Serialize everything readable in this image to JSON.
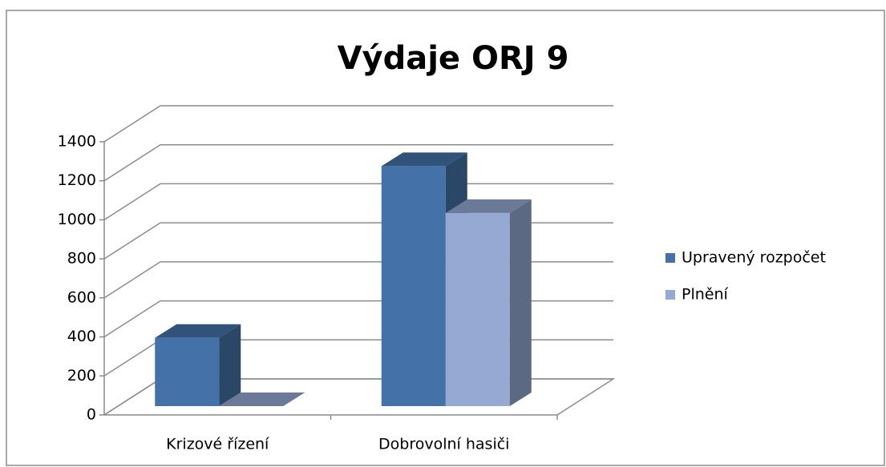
{
  "chart_data": {
    "type": "bar3d",
    "title": "Výdaje ORJ 9",
    "categories": [
      "Krizové řízení",
      "Dobrovolní hasiči"
    ],
    "series": [
      {
        "name": "Upravený rozpočet",
        "color": "#4472a8",
        "values": [
          350,
          1230
        ]
      },
      {
        "name": "Plnění",
        "color": "#95a9d3",
        "values": [
          0,
          990
        ]
      }
    ],
    "ylim": [
      0,
      1400
    ],
    "yticks": [
      0,
      200,
      400,
      600,
      800,
      1000,
      1200,
      1400
    ],
    "grid": true,
    "legend": "right"
  }
}
